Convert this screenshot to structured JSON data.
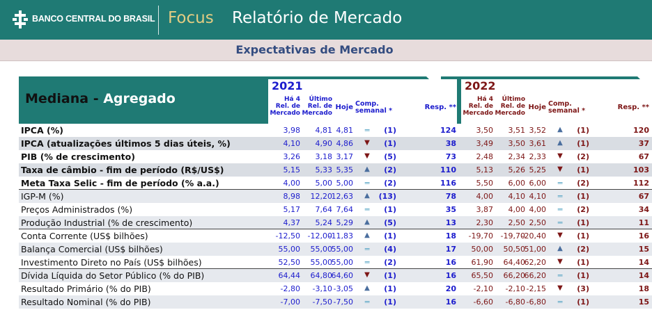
{
  "header": {
    "bank_name": "BANCO CENTRAL DO BRASIL",
    "focus_label": "Focus",
    "report_title": "Relatório de Mercado",
    "subtitle": "Expectativas de Mercado"
  },
  "table": {
    "title_part1": "Mediana - ",
    "title_part2": "Agregado",
    "years": [
      {
        "year": "2021",
        "columns": {
          "h4": [
            "Há 4",
            "Rel. de",
            "Mercado"
          ],
          "ult": [
            "Último",
            "Rel. de",
            "Mercado"
          ],
          "hoje": "Hoje",
          "comp": [
            "Comp.",
            "semanal *"
          ],
          "resp": "Resp. **"
        }
      },
      {
        "year": "2022",
        "columns": {
          "h4": [
            "Há 4",
            "Rel. de",
            "Mercado"
          ],
          "ult": [
            "Último",
            "Rel. de",
            "Mercado"
          ],
          "hoje": "Hoje",
          "comp": [
            "Comp.",
            "semanal *"
          ],
          "resp": "Resp. **"
        }
      }
    ],
    "rows": [
      {
        "label": "IPCA (%)",
        "bold": true,
        "y2021": {
          "h4": "3,98",
          "ult": "4,81",
          "hoje": "4,81",
          "trend": "equal",
          "weeks": "(1)",
          "resp": "124"
        },
        "y2022": {
          "h4": "3,50",
          "ult": "3,51",
          "hoje": "3,52",
          "trend": "up",
          "weeks": "(1)",
          "resp": "120"
        }
      },
      {
        "label": "IPCA (atualizações últimos 5 dias úteis, %)",
        "bold": true,
        "y2021": {
          "h4": "4,10",
          "ult": "4,90",
          "hoje": "4,86",
          "trend": "down",
          "weeks": "(1)",
          "resp": "38"
        },
        "y2022": {
          "h4": "3,49",
          "ult": "3,50",
          "hoje": "3,61",
          "trend": "up",
          "weeks": "(1)",
          "resp": "37"
        }
      },
      {
        "label": "PIB (% de crescimento)",
        "bold": true,
        "y2021": {
          "h4": "3,26",
          "ult": "3,18",
          "hoje": "3,17",
          "trend": "down",
          "weeks": "(5)",
          "resp": "73"
        },
        "y2022": {
          "h4": "2,48",
          "ult": "2,34",
          "hoje": "2,33",
          "trend": "down",
          "weeks": "(2)",
          "resp": "67"
        }
      },
      {
        "label": "Taxa de câmbio - fim de período (R$/US$)",
        "bold": true,
        "y2021": {
          "h4": "5,15",
          "ult": "5,33",
          "hoje": "5,35",
          "trend": "up",
          "weeks": "(2)",
          "resp": "110"
        },
        "y2022": {
          "h4": "5,13",
          "ult": "5,26",
          "hoje": "5,25",
          "trend": "down",
          "weeks": "(1)",
          "resp": "103"
        }
      },
      {
        "label": "Meta Taxa Selic - fim de período (% a.a.)",
        "bold": true,
        "y2021": {
          "h4": "4,00",
          "ult": "5,00",
          "hoje": "5,00",
          "trend": "equal",
          "weeks": "(2)",
          "resp": "116"
        },
        "y2022": {
          "h4": "5,50",
          "ult": "6,00",
          "hoje": "6,00",
          "trend": "equal",
          "weeks": "(2)",
          "resp": "112"
        }
      },
      {
        "label": "IGP-M (%)",
        "bold": false,
        "y2021": {
          "h4": "8,98",
          "ult": "12,20",
          "hoje": "12,63",
          "trend": "up",
          "weeks": "(13)",
          "resp": "78"
        },
        "y2022": {
          "h4": "4,00",
          "ult": "4,10",
          "hoje": "4,10",
          "trend": "equal",
          "weeks": "(1)",
          "resp": "67"
        }
      },
      {
        "label": "Preços Administrados (%)",
        "bold": false,
        "y2021": {
          "h4": "5,17",
          "ult": "7,64",
          "hoje": "7,64",
          "trend": "equal",
          "weeks": "(1)",
          "resp": "35"
        },
        "y2022": {
          "h4": "3,87",
          "ult": "4,00",
          "hoje": "4,00",
          "trend": "equal",
          "weeks": "(2)",
          "resp": "34"
        }
      },
      {
        "label": "Produção Industrial (% de crescimento)",
        "bold": false,
        "y2021": {
          "h4": "4,37",
          "ult": "5,24",
          "hoje": "5,29",
          "trend": "up",
          "weeks": "(5)",
          "resp": "13"
        },
        "y2022": {
          "h4": "2,30",
          "ult": "2,50",
          "hoje": "2,50",
          "trend": "equal",
          "weeks": "(1)",
          "resp": "11"
        }
      },
      {
        "label": "Conta Corrente (US$ bilhões)",
        "bold": false,
        "y2021": {
          "h4": "-12,50",
          "ult": "-12,00",
          "hoje": "-11,83",
          "trend": "up",
          "weeks": "(1)",
          "resp": "18"
        },
        "y2022": {
          "h4": "-19,70",
          "ult": "-19,70",
          "hoje": "-20,40",
          "trend": "down",
          "weeks": "(1)",
          "resp": "16"
        }
      },
      {
        "label": "Balança Comercial (US$ bilhões)",
        "bold": false,
        "y2021": {
          "h4": "55,00",
          "ult": "55,00",
          "hoje": "55,00",
          "trend": "equal",
          "weeks": "(4)",
          "resp": "17"
        },
        "y2022": {
          "h4": "50,00",
          "ult": "50,50",
          "hoje": "51,00",
          "trend": "up",
          "weeks": "(2)",
          "resp": "15"
        }
      },
      {
        "label": "Investimento Direto no País (US$ bilhões)",
        "bold": false,
        "y2021": {
          "h4": "52,50",
          "ult": "55,00",
          "hoje": "55,00",
          "trend": "equal",
          "weeks": "(2)",
          "resp": "16"
        },
        "y2022": {
          "h4": "61,90",
          "ult": "64,40",
          "hoje": "62,20",
          "trend": "down",
          "weeks": "(1)",
          "resp": "14"
        }
      },
      {
        "label": "Dívida Líquida do Setor Público (% do PIB)",
        "bold": false,
        "y2021": {
          "h4": "64,44",
          "ult": "64,80",
          "hoje": "64,60",
          "trend": "down",
          "weeks": "(1)",
          "resp": "16"
        },
        "y2022": {
          "h4": "65,50",
          "ult": "66,20",
          "hoje": "66,20",
          "trend": "equal",
          "weeks": "(1)",
          "resp": "14"
        }
      },
      {
        "label": "Resultado Primário (% do PIB)",
        "bold": false,
        "y2021": {
          "h4": "-2,80",
          "ult": "-3,10",
          "hoje": "-3,05",
          "trend": "up",
          "weeks": "(1)",
          "resp": "20"
        },
        "y2022": {
          "h4": "-2,10",
          "ult": "-2,10",
          "hoje": "-2,15",
          "trend": "down",
          "weeks": "(3)",
          "resp": "18"
        }
      },
      {
        "label": "Resultado Nominal (% do PIB)",
        "bold": false,
        "y2021": {
          "h4": "-7,00",
          "ult": "-7,50",
          "hoje": "-7,50",
          "trend": "equal",
          "weeks": "(1)",
          "resp": "16"
        },
        "y2022": {
          "h4": "-6,60",
          "ult": "-6,80",
          "hoje": "-6,80",
          "trend": "equal",
          "weeks": "(1)",
          "resp": "15"
        }
      }
    ],
    "colors": {
      "teal": "#1f7a74",
      "year2021_text": "#1c1ccd",
      "year2022_text": "#7d1616",
      "band_bold": "#d9dde3",
      "band_light": "#e6e9ee",
      "arrow": "#4a6e9e",
      "equal": "#5aa6c6"
    }
  }
}
